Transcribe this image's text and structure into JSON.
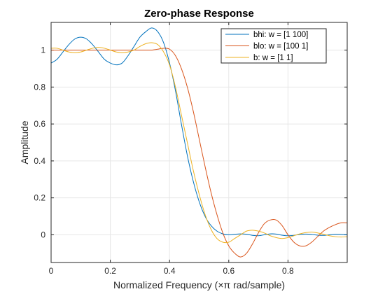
{
  "chart_data": {
    "type": "line",
    "title": "Zero-phase Response",
    "xlabel": "Normalized Frequency",
    "xlabel_symbol": "×π",
    "xlabel_unit": "rad/sample",
    "ylabel": "Amplitude",
    "xlim": [
      0,
      1
    ],
    "ylim": [
      -0.15,
      1.15
    ],
    "xticks": [
      0,
      0.2,
      0.4,
      0.6,
      0.8
    ],
    "xtick_labels": [
      "0",
      "0.2",
      "0.4",
      "0.6",
      "0.8"
    ],
    "yticks": [
      0,
      0.2,
      0.4,
      0.6,
      0.8,
      1
    ],
    "ytick_labels": [
      "0",
      "0.2",
      "0.4",
      "0.6",
      "0.8",
      "1"
    ],
    "grid": true,
    "legend_position": "top-right",
    "series": [
      {
        "name": "bhi: w = [1 100]",
        "color": "#0072bd",
        "x": [
          0,
          0.02,
          0.04,
          0.06,
          0.08,
          0.1,
          0.12,
          0.14,
          0.16,
          0.18,
          0.2,
          0.22,
          0.24,
          0.26,
          0.28,
          0.3,
          0.32,
          0.34,
          0.36,
          0.38,
          0.4,
          0.42,
          0.44,
          0.46,
          0.48,
          0.5,
          0.52,
          0.54,
          0.56,
          0.58,
          0.6,
          0.62,
          0.64,
          0.66,
          0.68,
          0.7,
          0.72,
          0.74,
          0.76,
          0.78,
          0.8,
          0.82,
          0.84,
          0.86,
          0.88,
          0.9,
          0.92,
          0.94,
          0.96,
          0.98,
          1.0
        ],
        "y": [
          0.93,
          0.95,
          0.99,
          1.03,
          1.06,
          1.07,
          1.06,
          1.03,
          0.99,
          0.95,
          0.93,
          0.92,
          0.93,
          0.97,
          1.02,
          1.07,
          1.1,
          1.12,
          1.1,
          1.04,
          0.93,
          0.78,
          0.6,
          0.43,
          0.29,
          0.18,
          0.1,
          0.05,
          0.02,
          0.005,
          0.0,
          0.003,
          0.005,
          0.003,
          -0.003,
          -0.005,
          0.0,
          0.005,
          0.004,
          -0.002,
          -0.005,
          -0.003,
          0.002,
          0.004,
          0.002,
          -0.002,
          -0.003,
          0.0,
          0.003,
          0.002,
          0.0
        ]
      },
      {
        "name": "blo: w = [100 1]",
        "color": "#d95319",
        "x": [
          0,
          0.02,
          0.04,
          0.06,
          0.08,
          0.1,
          0.12,
          0.14,
          0.16,
          0.18,
          0.2,
          0.22,
          0.24,
          0.26,
          0.28,
          0.3,
          0.32,
          0.34,
          0.36,
          0.38,
          0.4,
          0.42,
          0.44,
          0.46,
          0.48,
          0.5,
          0.52,
          0.54,
          0.56,
          0.58,
          0.6,
          0.62,
          0.64,
          0.66,
          0.68,
          0.7,
          0.72,
          0.74,
          0.76,
          0.78,
          0.8,
          0.82,
          0.84,
          0.86,
          0.88,
          0.9,
          0.92,
          0.94,
          0.96,
          0.98,
          1.0
        ],
        "y": [
          1.0,
          1.0,
          1.0,
          1.0,
          1.0,
          1.0,
          1.0,
          1.0,
          1.0,
          1.0,
          1.0,
          1.0,
          1.0,
          1.0,
          1.0,
          1.0,
          1.0,
          1.0,
          1.005,
          1.01,
          1.005,
          0.97,
          0.9,
          0.8,
          0.67,
          0.52,
          0.37,
          0.23,
          0.11,
          0.01,
          -0.06,
          -0.1,
          -0.12,
          -0.1,
          -0.05,
          0.01,
          0.06,
          0.08,
          0.08,
          0.05,
          0.0,
          -0.04,
          -0.06,
          -0.06,
          -0.04,
          -0.01,
          0.02,
          0.04,
          0.055,
          0.065,
          0.065
        ]
      },
      {
        "name": "b: w = [1 1]",
        "color": "#edb120",
        "x": [
          0,
          0.02,
          0.04,
          0.06,
          0.08,
          0.1,
          0.12,
          0.14,
          0.16,
          0.18,
          0.2,
          0.22,
          0.24,
          0.26,
          0.28,
          0.3,
          0.32,
          0.34,
          0.36,
          0.38,
          0.4,
          0.42,
          0.44,
          0.46,
          0.48,
          0.5,
          0.52,
          0.54,
          0.56,
          0.58,
          0.6,
          0.62,
          0.64,
          0.66,
          0.68,
          0.7,
          0.72,
          0.74,
          0.76,
          0.78,
          0.8,
          0.82,
          0.84,
          0.86,
          0.88,
          0.9,
          0.92,
          0.94,
          0.96,
          0.98,
          1.0
        ],
        "y": [
          1.01,
          1.01,
          1.0,
          0.99,
          0.985,
          0.99,
          1.0,
          1.01,
          1.015,
          1.01,
          1.0,
          0.99,
          0.985,
          0.99,
          1.0,
          1.02,
          1.035,
          1.04,
          1.03,
          0.99,
          0.92,
          0.8,
          0.65,
          0.5,
          0.35,
          0.22,
          0.11,
          0.03,
          -0.02,
          -0.04,
          -0.04,
          -0.02,
          0.0,
          0.02,
          0.025,
          0.02,
          0.01,
          -0.005,
          -0.015,
          -0.02,
          -0.015,
          -0.005,
          0.005,
          0.012,
          0.015,
          0.01,
          0.003,
          -0.005,
          -0.01,
          -0.012,
          -0.01
        ]
      }
    ]
  }
}
